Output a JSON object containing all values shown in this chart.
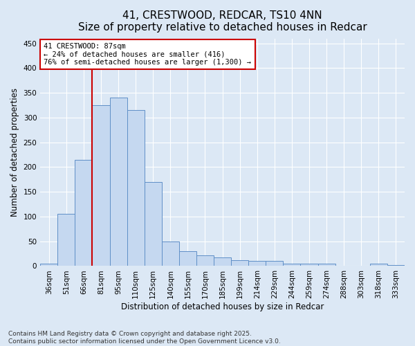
{
  "title_line1": "41, CRESTWOOD, REDCAR, TS10 4NN",
  "title_line2": "Size of property relative to detached houses in Redcar",
  "xlabel": "Distribution of detached houses by size in Redcar",
  "ylabel": "Number of detached properties",
  "categories": [
    "36sqm",
    "51sqm",
    "66sqm",
    "81sqm",
    "95sqm",
    "110sqm",
    "125sqm",
    "140sqm",
    "155sqm",
    "170sqm",
    "185sqm",
    "199sqm",
    "214sqm",
    "229sqm",
    "244sqm",
    "259sqm",
    "274sqm",
    "288sqm",
    "303sqm",
    "318sqm",
    "333sqm"
  ],
  "values": [
    5,
    105,
    215,
    325,
    340,
    315,
    170,
    50,
    30,
    22,
    18,
    12,
    10,
    10,
    5,
    5,
    5,
    0,
    0,
    5,
    2
  ],
  "bar_color": "#c5d8f0",
  "bar_edge_color": "#5f8fc7",
  "vline_color": "#cc0000",
  "vline_x_index": 2.5,
  "annotation_text": "41 CRESTWOOD: 87sqm\n← 24% of detached houses are smaller (416)\n76% of semi-detached houses are larger (1,300) →",
  "annotation_box_facecolor": "#ffffff",
  "annotation_box_edgecolor": "#cc0000",
  "ylim": [
    0,
    460
  ],
  "yticks": [
    0,
    50,
    100,
    150,
    200,
    250,
    300,
    350,
    400,
    450
  ],
  "background_color": "#dce8f5",
  "fig_facecolor": "#dce8f5",
  "footer_text": "Contains HM Land Registry data © Crown copyright and database right 2025.\nContains public sector information licensed under the Open Government Licence v3.0.",
  "title_fontsize": 11,
  "axis_label_fontsize": 8.5,
  "tick_fontsize": 7.5,
  "annotation_fontsize": 7.5,
  "footer_fontsize": 6.5
}
